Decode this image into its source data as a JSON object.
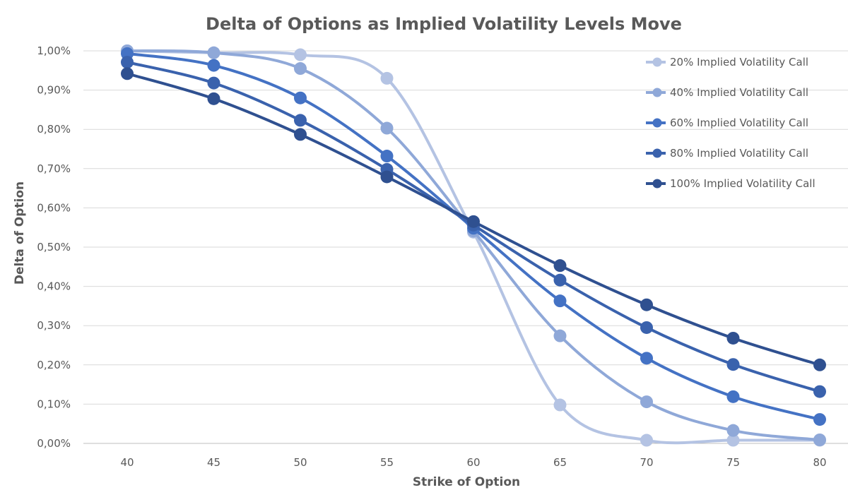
{
  "chart_data": {
    "type": "line",
    "smooth": true,
    "title": "Delta of Options as Implied Volatility Levels Move",
    "xlabel": "Strike of Option",
    "ylabel": "Delta of Option",
    "categories": [
      "40",
      "45",
      "50",
      "55",
      "60",
      "65",
      "70",
      "75",
      "80"
    ],
    "y_ticks": [
      "0,00%",
      "0,10%",
      "0,20%",
      "0,30%",
      "0,40%",
      "0,50%",
      "0,60%",
      "0,70%",
      "0,80%",
      "0,90%",
      "1,00%"
    ],
    "ylim": [
      0,
      1.0
    ],
    "grid": true,
    "legend": "right",
    "series": [
      {
        "name": "20% Implied Volatility Call",
        "color": "#b4c3e3",
        "values": [
          1.0,
          0.995,
          0.99,
          0.93,
          0.538,
          0.098,
          0.008,
          0.008,
          0.008
        ]
      },
      {
        "name": "40% Implied Volatility Call",
        "color": "#8fa8d8",
        "values": [
          1.0,
          0.995,
          0.955,
          0.803,
          0.541,
          0.274,
          0.106,
          0.033,
          0.009
        ]
      },
      {
        "name": "60% Implied Volatility Call",
        "color": "#4472c4",
        "values": [
          0.993,
          0.963,
          0.88,
          0.732,
          0.548,
          0.363,
          0.217,
          0.119,
          0.061
        ]
      },
      {
        "name": "80% Implied Volatility Call",
        "color": "#3a62ad",
        "values": [
          0.971,
          0.918,
          0.823,
          0.698,
          0.556,
          0.416,
          0.295,
          0.201,
          0.132
        ]
      },
      {
        "name": "100% Implied Volatility Call",
        "color": "#2f5090",
        "values": [
          0.942,
          0.878,
          0.787,
          0.679,
          0.565,
          0.453,
          0.353,
          0.268,
          0.2
        ]
      }
    ]
  }
}
